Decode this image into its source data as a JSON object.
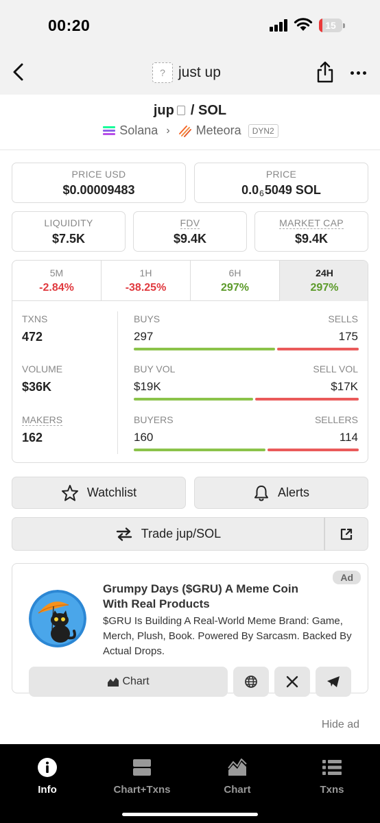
{
  "status_bar": {
    "time": "00:20",
    "battery": "15",
    "battery_level": 0.15,
    "battery_color": "#ea3a3a"
  },
  "nav": {
    "title": "just up",
    "placeholder_glyph": "?"
  },
  "pair": {
    "base": "jup",
    "separator": "/",
    "quote": "SOL",
    "chain": "Solana",
    "dex": "Meteora",
    "pool_badge": "DYN2"
  },
  "price": {
    "usd_label": "PRICE USD",
    "usd_value": "$0.00009483",
    "native_label": "PRICE",
    "native_prefix": "0.0",
    "native_subscript": "6",
    "native_suffix": "5049 SOL"
  },
  "metrics": [
    {
      "label": "LIQUIDITY",
      "value": "$7.5K"
    },
    {
      "label": "FDV",
      "value": "$9.4K"
    },
    {
      "label": "MARKET CAP",
      "value": "$9.4K"
    }
  ],
  "timeframes": [
    {
      "label": "5M",
      "change": "-2.84%"
    },
    {
      "label": "1H",
      "change": "-38.25%"
    },
    {
      "label": "6H",
      "change": "297%"
    },
    {
      "label": "24H",
      "change": "297%"
    }
  ],
  "stats": {
    "txns_label": "TXNS",
    "txns": "472",
    "volume_label": "VOLUME",
    "volume": "$36K",
    "makers_label": "MAKERS",
    "makers": "162",
    "buys_label": "BUYS",
    "buys": "297",
    "sells_label": "SELLS",
    "sells": "175",
    "buys_ratio": 0.629,
    "buy_vol_label": "BUY VOL",
    "buy_vol": "$19K",
    "sell_vol_label": "SELL VOL",
    "sell_vol": "$17K",
    "buy_vol_ratio": 0.53,
    "buyers_label": "BUYERS",
    "buyers": "160",
    "sellers_label": "SELLERS",
    "sellers": "114",
    "buyers_ratio": 0.584
  },
  "actions": {
    "watchlist": "Watchlist",
    "alerts": "Alerts",
    "trade": "Trade jup/SOL"
  },
  "ad": {
    "badge": "Ad",
    "title": "Grumpy Days ($GRU) A Meme Coin With Real Products",
    "description": "$GRU Is Building A Real-World Meme Brand: Game, Merch, Plush, Book. Powered By Sarcasm. Backed By Actual Drops.",
    "chart_button": "Chart",
    "hide": "Hide ad"
  },
  "tabbar": [
    {
      "label": "Info",
      "icon": "info-icon"
    },
    {
      "label": "Chart+Txns",
      "icon": "split-view-icon"
    },
    {
      "label": "Chart",
      "icon": "chart-icon"
    },
    {
      "label": "Txns",
      "icon": "list-icon"
    }
  ],
  "colors": {
    "negative": "#e0393e",
    "positive": "#5c9a2a",
    "buy_bar": "#8bc34a",
    "sell_bar": "#ea5a5a"
  }
}
